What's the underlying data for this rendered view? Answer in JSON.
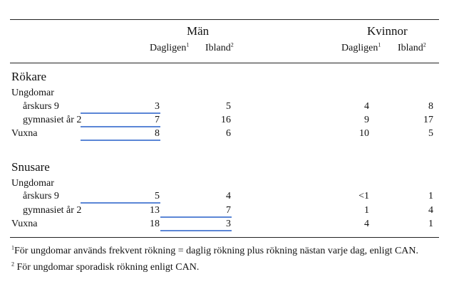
{
  "header": {
    "group_men": "Män",
    "group_women": "Kvinnor",
    "col_daily": "Dagligen",
    "col_daily_sup": "1",
    "col_sometimes": "Ibland",
    "col_sometimes_sup": "2"
  },
  "sections": [
    {
      "title": "Rökare",
      "group_label": "Ungdomar",
      "rows": [
        {
          "label": "årskurs 9",
          "men_daily": "3",
          "men_sometimes": "5",
          "women_daily": "4",
          "women_sometimes": "8"
        },
        {
          "label": "gymnasiet år 2",
          "men_daily": "7",
          "men_sometimes": "16",
          "women_daily": "9",
          "women_sometimes": "17"
        },
        {
          "label": "Vuxna",
          "men_daily": "8",
          "men_sometimes": "6",
          "women_daily": "10",
          "women_sometimes": "5"
        }
      ]
    },
    {
      "title": "Snusare",
      "group_label": "Ungdomar",
      "rows": [
        {
          "label": "årskurs 9",
          "men_daily": "5",
          "men_sometimes": "4",
          "women_daily": "<1",
          "women_sometimes": "1"
        },
        {
          "label": "gymnasiet år 2",
          "men_daily": "13",
          "men_sometimes": "7",
          "women_daily": "1",
          "women_sometimes": "4"
        },
        {
          "label": "Vuxna",
          "men_daily": "18",
          "men_sometimes": "3",
          "women_daily": "4",
          "women_sometimes": "1"
        }
      ]
    }
  ],
  "footnotes": [
    {
      "mark": "1",
      "text": "För ungdomar används frekvent rökning = daglig rökning plus rökning nästan varje dag, enligt CAN."
    },
    {
      "mark": "2",
      "text": " För ungdomar sporadisk rökning enligt CAN."
    }
  ],
  "colors": {
    "highlight_underline": "#5b86d6",
    "rule": "#222222"
  }
}
